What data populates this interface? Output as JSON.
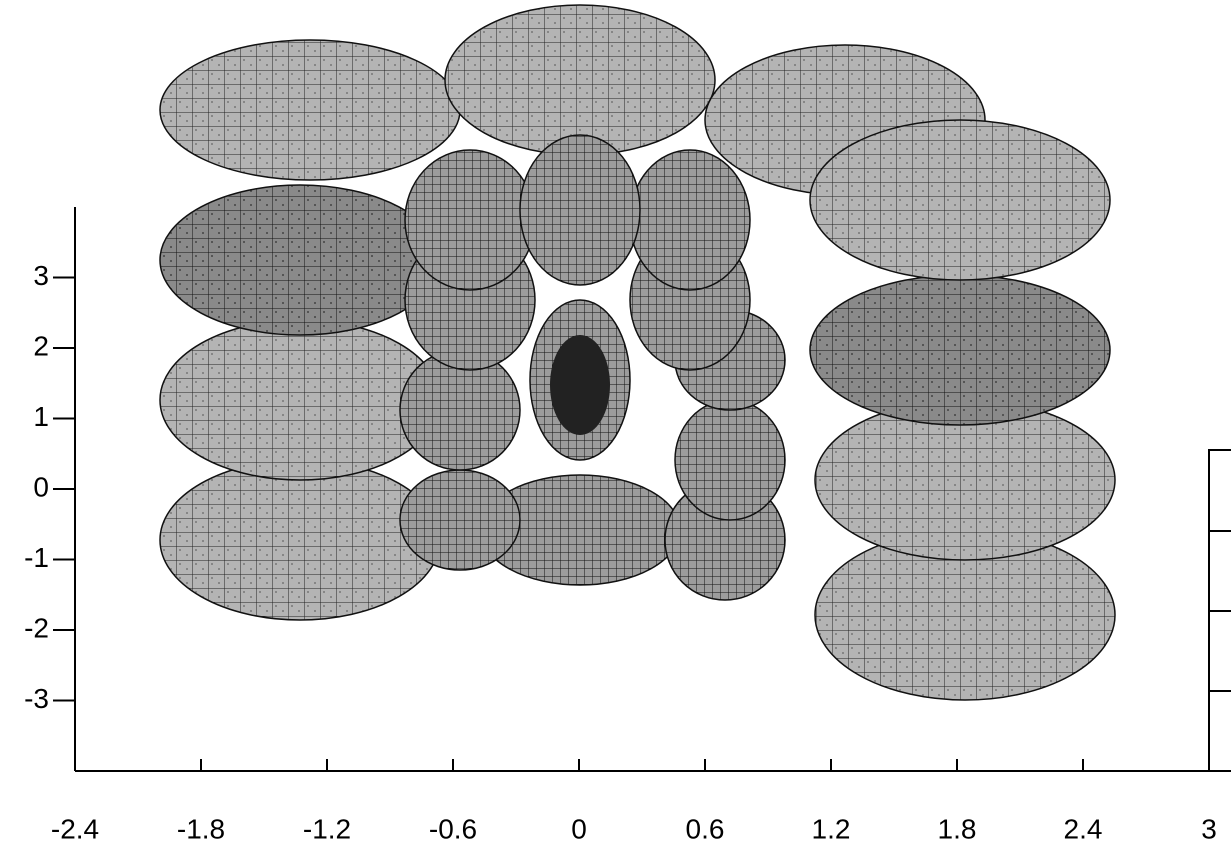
{
  "chart_data": {
    "type": "mesh",
    "xlim": [
      -2.4,
      3.1
    ],
    "xticks": [
      -2.4,
      -1.8,
      -1.2,
      -0.6,
      0,
      0.6,
      1.2,
      1.8,
      2.4,
      3
    ],
    "ylim": [
      -4,
      4
    ],
    "yticks": [
      -3,
      -2,
      -1,
      0,
      1,
      2,
      3
    ]
  }
}
